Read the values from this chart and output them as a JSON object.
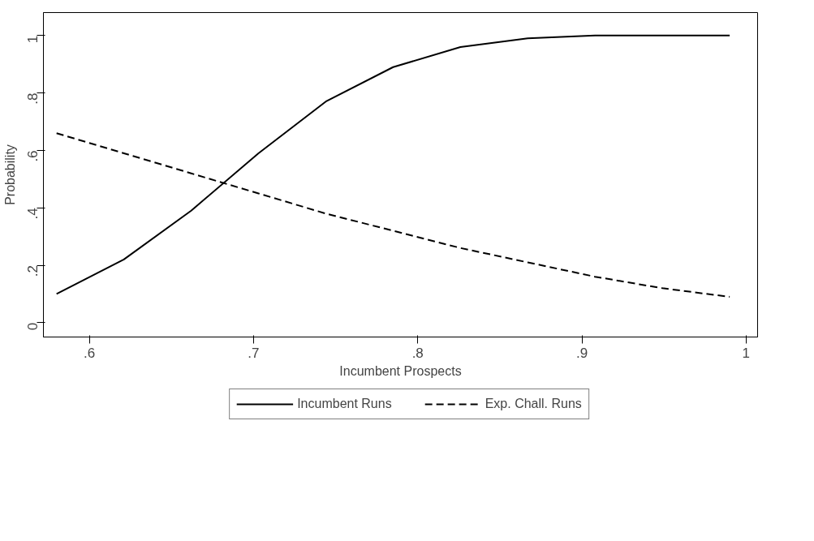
{
  "chart_data": {
    "type": "line",
    "xlabel": "Incumbent Prospects",
    "ylabel": "Probability",
    "x": [
      0.58,
      0.621,
      0.662,
      0.703,
      0.744,
      0.785,
      0.826,
      0.867,
      0.908,
      0.949,
      0.99
    ],
    "series": [
      {
        "name": "Incumbent Runs",
        "color": "#000000",
        "line_style": "solid",
        "values": [
          0.1,
          0.22,
          0.39,
          0.59,
          0.77,
          0.89,
          0.96,
          0.99,
          1.0,
          1.0,
          1.0
        ]
      },
      {
        "name": "Exp. Chall. Runs",
        "color": "#000000",
        "line_style": "dashed",
        "values": [
          0.66,
          0.59,
          0.52,
          0.45,
          0.38,
          0.32,
          0.26,
          0.21,
          0.16,
          0.12,
          0.09
        ]
      }
    ],
    "xlim": [
      0.572,
      1.007
    ],
    "ylim": [
      -0.05,
      1.08
    ],
    "xticks": [
      {
        "value": 0.6,
        "label": ".6"
      },
      {
        "value": 0.7,
        "label": ".7"
      },
      {
        "value": 0.8,
        "label": ".8"
      },
      {
        "value": 0.9,
        "label": ".9"
      },
      1
    ],
    "yticks": [
      0,
      {
        "value": 0.2,
        "label": ".2"
      },
      {
        "value": 0.4,
        "label": ".4"
      },
      {
        "value": 0.6,
        "label": ".6"
      },
      {
        "value": 0.8,
        "label": ".8"
      },
      1
    ],
    "grid": false,
    "legend": "bottom",
    "marker": "none"
  }
}
